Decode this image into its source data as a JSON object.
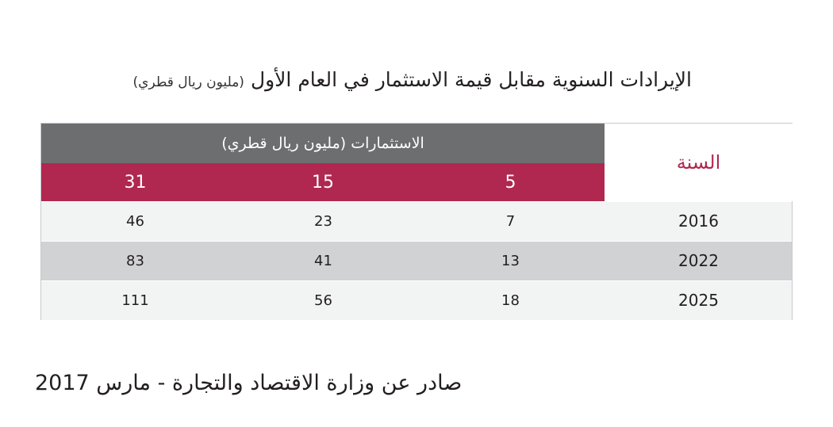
{
  "header": {
    "title": "الإيرادات السنوية مقابل قيمة الاستثمار في العام الأول",
    "subtitle": "(مليون ريال قطري)"
  },
  "table": {
    "year_label": "السنة",
    "group_label": "الاستثمارات (مليون ريال قطري)",
    "investments": [
      5,
      15,
      31
    ],
    "rows": [
      [
        2016,
        7,
        23,
        46
      ],
      [
        2022,
        13,
        41,
        83
      ],
      [
        2025,
        18,
        56,
        111
      ]
    ]
  },
  "footer": {
    "source": "صادر عن وزارة الاقتصاد والتجارة - مارس 2017"
  }
}
